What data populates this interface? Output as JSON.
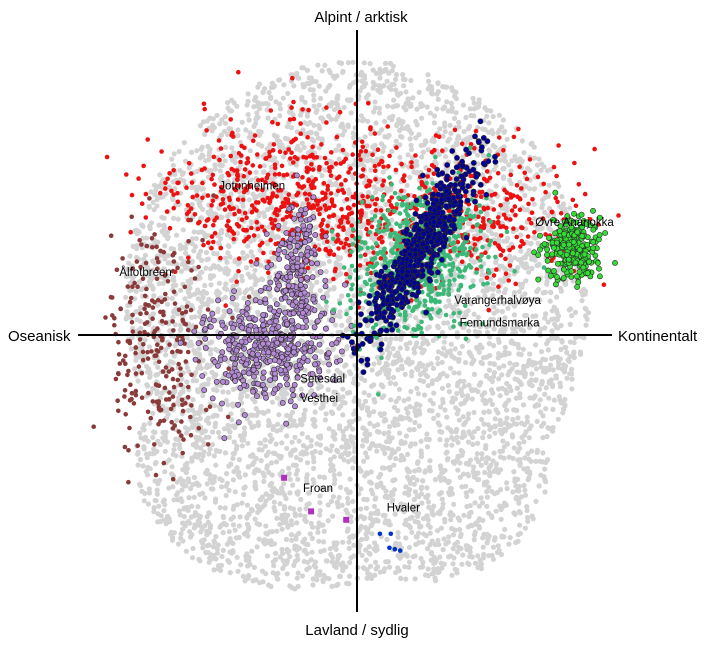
{
  "chart_data": {
    "type": "scatter",
    "title": "",
    "grid": false,
    "axes": {
      "top": "Alpint / arktisk",
      "bottom": "Lavland / sydlig",
      "left": "Oseanisk",
      "right": "Kontinentalt"
    },
    "xlim": [
      -10,
      10
    ],
    "ylim": [
      -10,
      10
    ],
    "colors": {
      "background_cloud": "#d3d3d3",
      "red": "#ee1111",
      "brown": "#8b3a3a",
      "lilac": "#b58ad4",
      "navy": "#000099",
      "teal": "#3cb878",
      "lime": "#33dd33",
      "magenta": "#b030c0",
      "blue": "#0033cc"
    },
    "labels": [
      {
        "text": "Jotunheimen",
        "x": -5.1,
        "y": 5.2
      },
      {
        "text": "Ålfotbreen",
        "x": -8.8,
        "y": 2.1
      },
      {
        "text": "Øvre Anarjokka",
        "x": 6.6,
        "y": 3.9
      },
      {
        "text": "Varangerhalvøya",
        "x": 3.6,
        "y": 1.1
      },
      {
        "text": "Femundsmarka",
        "x": 3.8,
        "y": 0.3
      },
      {
        "text": "Setesdal",
        "x": -2.1,
        "y": -1.7
      },
      {
        "text": "Vesthei",
        "x": -2.1,
        "y": -2.4
      },
      {
        "text": "Froan",
        "x": -2.0,
        "y": -5.6
      },
      {
        "text": "Hvaler",
        "x": 1.1,
        "y": -6.3
      }
    ],
    "series": [
      {
        "key": "red",
        "color": "#ee1111",
        "shape": "dot",
        "n": 900,
        "clusters": [
          {
            "cx": -2.8,
            "cy": 5.0,
            "sx": 2.4,
            "sy": 1.4,
            "w": 0.55
          },
          {
            "cx": 3.3,
            "cy": 4.3,
            "sx": 2.5,
            "sy": 1.2,
            "w": 0.45
          }
        ]
      },
      {
        "key": "brown",
        "color": "#8b3a3a",
        "shape": "dot",
        "n": 240,
        "clusters": [
          {
            "cx": -7.4,
            "cy": -0.3,
            "sx": 0.9,
            "sy": 2.2,
            "w": 1
          }
        ]
      },
      {
        "key": "lilac",
        "color": "#b58ad4",
        "shape": "ring",
        "n": 600,
        "clusters": [
          {
            "cx": -3.4,
            "cy": -0.5,
            "sx": 1.2,
            "sy": 1.0,
            "w": 0.65
          },
          {
            "cx": -2.2,
            "cy": 2.3,
            "sx": 0.45,
            "sy": 1.3,
            "w": 0.35
          }
        ]
      },
      {
        "key": "teal",
        "color": "#3cb878",
        "shape": "dot",
        "n": 650,
        "clusters": [
          {
            "cx": 2.3,
            "cy": 2.7,
            "sx": 1.1,
            "sy": 1.4,
            "rot": -0.75,
            "w": 1
          }
        ]
      },
      {
        "key": "navy",
        "color": "#000099",
        "shape": "ring",
        "n": 550,
        "clusters": [
          {
            "cx": 2.3,
            "cy": 3.0,
            "sx": 0.4,
            "sy": 1.9,
            "rot": -0.55,
            "w": 1
          }
        ]
      },
      {
        "key": "lime",
        "color": "#33dd33",
        "shape": "ring",
        "n": 260,
        "clusters": [
          {
            "cx": 8.0,
            "cy": 3.1,
            "sx": 0.5,
            "sy": 0.55,
            "w": 1
          }
        ]
      }
    ],
    "points": [
      {
        "series": "magenta",
        "color": "#b030c0",
        "shape": "square",
        "x": -2.7,
        "y": -5.1
      },
      {
        "series": "magenta",
        "color": "#b030c0",
        "shape": "square",
        "x": -1.7,
        "y": -6.3
      },
      {
        "series": "magenta",
        "color": "#b030c0",
        "shape": "square",
        "x": -0.4,
        "y": -6.6
      },
      {
        "series": "blue",
        "color": "#0033cc",
        "shape": "dot",
        "x": 0.85,
        "y": -7.1
      },
      {
        "series": "blue",
        "color": "#0033cc",
        "shape": "dot",
        "x": 1.25,
        "y": -7.1
      },
      {
        "series": "blue",
        "color": "#0033cc",
        "shape": "dot",
        "x": 1.2,
        "y": -7.6
      },
      {
        "series": "blue",
        "color": "#0033cc",
        "shape": "dot",
        "x": 1.4,
        "y": -7.65
      },
      {
        "series": "blue",
        "color": "#0033cc",
        "shape": "dot",
        "x": 1.6,
        "y": -7.7
      }
    ]
  }
}
